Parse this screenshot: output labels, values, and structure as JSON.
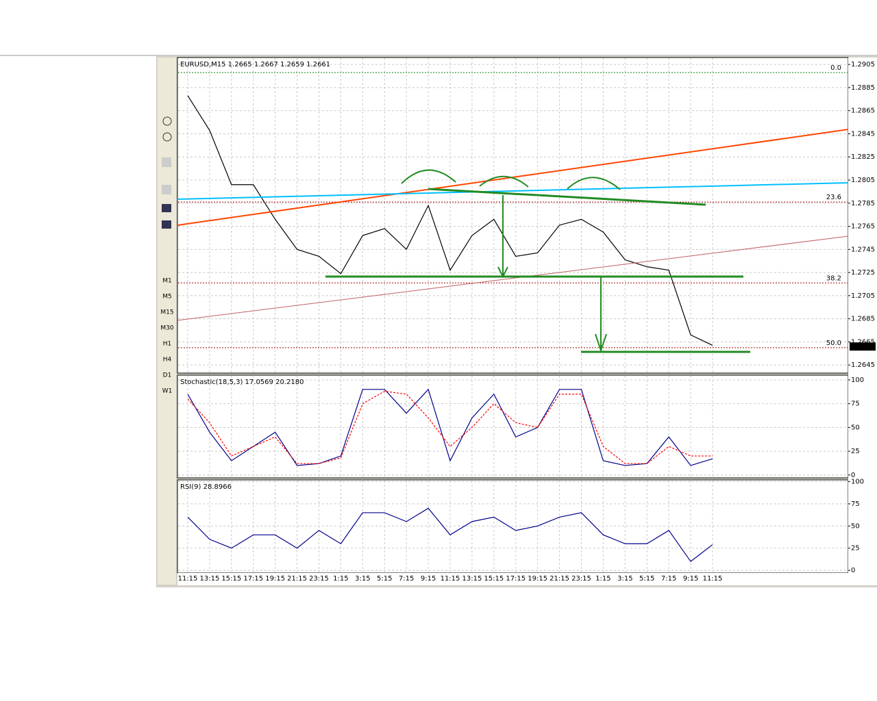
{
  "timeframes": [
    "M1",
    "M5",
    "M15",
    "M30",
    "H1",
    "H4",
    "D1",
    "W1"
  ],
  "chart_data": [
    {
      "type": "line",
      "title": "EURUSD,M15  1.2665 1.2667 1.2659 1.2661",
      "categories": [
        "11:15",
        "13:15",
        "15:15",
        "17:15",
        "19:15",
        "21:15",
        "23:15",
        "1:15",
        "3:15",
        "5:15",
        "7:15",
        "9:15",
        "11:15",
        "13:15",
        "15:15",
        "17:15",
        "19:15",
        "21:15",
        "23:15",
        "1:15",
        "3:15",
        "5:15",
        "7:15",
        "9:15",
        "11:15"
      ],
      "series": [
        {
          "name": "EURUSD",
          "color": "#000000",
          "values": [
            1.2878,
            1.2848,
            1.2801,
            1.2801,
            1.2771,
            1.2745,
            1.2739,
            1.2724,
            1.2757,
            1.2763,
            1.2745,
            1.2783,
            1.2727,
            1.2757,
            1.2771,
            1.2739,
            1.2742,
            1.2766,
            1.2771,
            1.276,
            1.2736,
            1.273,
            1.2727,
            1.2671,
            1.2662
          ]
        }
      ],
      "ylim": [
        1.2638,
        1.2911
      ],
      "yticks": [
        1.2645,
        1.2665,
        1.2685,
        1.2705,
        1.2725,
        1.2745,
        1.2765,
        1.2785,
        1.2805,
        1.2825,
        1.2845,
        1.2865,
        1.2885,
        1.2905
      ],
      "hlines": [
        {
          "label": "0.0",
          "value": 1.2898,
          "color": "#008000"
        },
        {
          "label": "23.6",
          "value": 1.2786,
          "color": "#a00000"
        },
        {
          "label": "38.2",
          "value": 1.2716,
          "color": "#a00000"
        },
        {
          "label": "50.0",
          "value": 1.266,
          "color": "#a00000"
        }
      ],
      "last_price": 1.2661,
      "grid": true
    },
    {
      "type": "line",
      "title": "Stochastic(18,5,3) 17.0569 20.2180",
      "series": [
        {
          "name": "Main",
          "color": "#00008b",
          "values": [
            85,
            45,
            15,
            30,
            45,
            10,
            12,
            20,
            90,
            90,
            65,
            90,
            15,
            60,
            85,
            40,
            50,
            90,
            90,
            15,
            10,
            12,
            40,
            10,
            17
          ]
        },
        {
          "name": "Signal",
          "color": "#ff0000",
          "dashed": true,
          "values": [
            80,
            55,
            20,
            30,
            40,
            12,
            12,
            18,
            75,
            88,
            85,
            60,
            30,
            50,
            75,
            55,
            50,
            85,
            85,
            30,
            12,
            12,
            30,
            20,
            20
          ]
        }
      ],
      "ylim": [
        -3,
        105
      ],
      "yticks": [
        0,
        25,
        50,
        75,
        100
      ],
      "grid": true
    },
    {
      "type": "line",
      "title": "RSI(9) 28.8966",
      "series": [
        {
          "name": "RSI",
          "color": "#00008b",
          "values": [
            60,
            35,
            25,
            40,
            40,
            25,
            45,
            30,
            65,
            65,
            55,
            70,
            40,
            55,
            60,
            45,
            50,
            60,
            65,
            40,
            30,
            30,
            45,
            10,
            29
          ]
        }
      ],
      "ylim": [
        -3,
        102
      ],
      "yticks": [
        0,
        25,
        50,
        75,
        100
      ],
      "grid": true
    }
  ]
}
